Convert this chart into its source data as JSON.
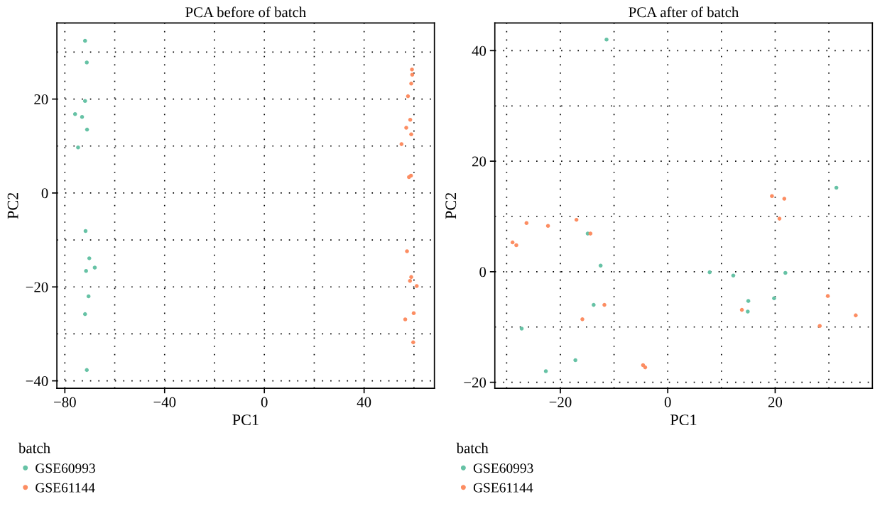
{
  "chart_data": [
    {
      "type": "scatter",
      "title": "PCA before of batch",
      "xlabel": "PC1",
      "ylabel": "PC2",
      "legend_title": "batch",
      "legend": "bottom left",
      "grid": true,
      "marker": "circle",
      "xlim": [
        -83.2,
        68.2
      ],
      "ylim": [
        -41.6,
        36.2
      ],
      "xticks": [
        {
          "value": -80,
          "label": "−80"
        },
        {
          "value": -60,
          "label": null
        },
        {
          "value": -40,
          "label": "−40"
        },
        {
          "value": -20,
          "label": null
        },
        0,
        {
          "value": 20,
          "label": null
        },
        40,
        {
          "value": 60,
          "label": null
        }
      ],
      "yticks": [
        {
          "value": 30,
          "label": null
        },
        20,
        {
          "value": 10,
          "label": null
        },
        0,
        {
          "value": -10,
          "label": null
        },
        {
          "value": -20,
          "label": "−20"
        },
        {
          "value": -30,
          "label": null
        },
        {
          "value": -40,
          "label": "−40"
        }
      ],
      "series": [
        {
          "name": "GSE60993",
          "color": "#66c2a5",
          "x": [
            -71.9,
            -71.2,
            -71.9,
            -75.9,
            -73.1,
            -71.1,
            -74.7,
            -71.7,
            -70.2,
            -68.0,
            -71.5,
            -70.5,
            -71.9,
            -71.2
          ],
          "values": [
            32.4,
            27.8,
            19.6,
            16.8,
            16.2,
            13.5,
            9.7,
            -8.1,
            -13.9,
            -15.9,
            -16.6,
            -22.0,
            -25.8,
            -37.7
          ]
        },
        {
          "name": "GSE61144",
          "color": "#fc8d62",
          "x": [
            59.2,
            59.3,
            58.9,
            57.6,
            58.5,
            56.9,
            58.9,
            55.0,
            58.8,
            58.0,
            57.2,
            58.9,
            58.4,
            61.1,
            59.9,
            56.5,
            59.7
          ],
          "values": [
            26.3,
            25.2,
            23.3,
            20.6,
            15.6,
            13.9,
            12.5,
            10.4,
            3.7,
            3.4,
            -12.4,
            -17.9,
            -18.7,
            -19.8,
            -25.6,
            -26.9,
            -31.8
          ]
        }
      ]
    },
    {
      "type": "scatter",
      "title": "PCA after of batch",
      "xlabel": "PC1",
      "ylabel": "PC2",
      "legend_title": "batch",
      "legend": "bottom left",
      "grid": true,
      "marker": "circle",
      "xlim": [
        -32.2,
        38.1
      ],
      "ylim": [
        -21.1,
        45.0
      ],
      "xticks": [
        {
          "value": -30,
          "label": null
        },
        {
          "value": -20,
          "label": "−20"
        },
        {
          "value": -10,
          "label": null
        },
        0,
        {
          "value": 10,
          "label": null
        },
        20,
        {
          "value": 30,
          "label": null
        }
      ],
      "yticks": [
        40,
        {
          "value": 30,
          "label": null
        },
        20,
        {
          "value": 10,
          "label": null
        },
        0,
        {
          "value": -10,
          "label": null
        },
        {
          "value": -20,
          "label": "−20"
        }
      ],
      "series": [
        {
          "name": "GSE60993",
          "color": "#66c2a5",
          "x": [
            -11.4,
            31.4,
            -14.9,
            -12.5,
            7.8,
            12.2,
            21.9,
            15.0,
            19.8,
            14.9,
            -13.8,
            -27.2,
            -17.2,
            -22.7
          ],
          "values": [
            42.0,
            15.2,
            6.9,
            1.1,
            -0.1,
            -0.7,
            -0.2,
            -5.3,
            -4.8,
            -7.2,
            -6.0,
            -10.3,
            -16.0,
            -18.0
          ]
        },
        {
          "name": "GSE61144",
          "color": "#fc8d62",
          "x": [
            19.4,
            21.7,
            -26.3,
            -22.3,
            -17.0,
            -28.9,
            -28.2,
            -14.4,
            20.8,
            -11.8,
            -15.9,
            13.8,
            29.8,
            35.0,
            28.3,
            -4.6,
            -4.2
          ],
          "values": [
            13.7,
            13.2,
            8.8,
            8.3,
            9.4,
            5.3,
            4.8,
            6.9,
            9.6,
            -6.0,
            -8.6,
            -6.9,
            -4.4,
            -7.9,
            -9.8,
            -16.9,
            -17.3
          ]
        }
      ]
    }
  ]
}
